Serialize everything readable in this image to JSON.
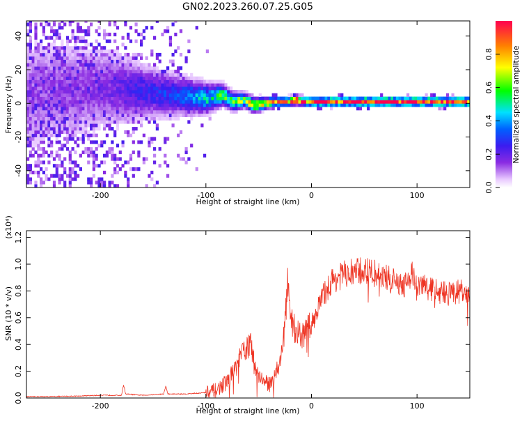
{
  "title": "GN02.2023.260.07.25.G05",
  "chart_data": [
    {
      "type": "heatmap",
      "xlabel": "Height of straight line (km)",
      "ylabel": "Frequency (Hz)",
      "xlim": [
        -270,
        150
      ],
      "ylim": [
        -50,
        49
      ],
      "xticks": [
        -200,
        -100,
        0,
        100
      ],
      "yticks": [
        -40,
        -20,
        0,
        20,
        40
      ],
      "colorbar": {
        "label": "Normalized spectral amplitude",
        "range": [
          0.0,
          1.0
        ],
        "ticks": [
          0.0,
          0.2,
          0.4,
          0.6,
          0.8
        ]
      },
      "ridge": {
        "x": [
          -270,
          -200,
          -160,
          -130,
          -100,
          -85,
          -75,
          -65,
          -55,
          -45,
          -35,
          -25,
          -15,
          -5,
          0,
          50,
          100,
          150
        ],
        "y": [
          5,
          8,
          6,
          4,
          2,
          4,
          0,
          1,
          -2,
          -1,
          0,
          0,
          1,
          0,
          0,
          0,
          0,
          0
        ],
        "width": [
          40,
          30,
          18,
          14,
          10,
          7,
          6,
          5,
          5,
          4,
          3,
          3,
          3,
          3,
          3,
          3,
          3,
          3
        ],
        "peak": [
          0.12,
          0.15,
          0.25,
          0.3,
          0.45,
          0.55,
          0.6,
          0.65,
          0.7,
          0.75,
          0.8,
          0.85,
          0.95,
          0.9,
          0.95,
          1.0,
          1.0,
          0.95
        ]
      }
    },
    {
      "type": "line",
      "xlabel": "Height of straight line (km)",
      "ylabel": "SNR (10 * v/v)",
      "y_scale_note": "(x10⁴)",
      "xlim": [
        -270,
        150
      ],
      "ylim": [
        0,
        1.25
      ],
      "xticks": [
        -200,
        -100,
        0,
        100
      ],
      "yticks": [
        0.0,
        0.2,
        0.4,
        0.6,
        0.8,
        1.0,
        1.2
      ],
      "series": [
        {
          "color": "#ee3322",
          "x": [
            -270,
            -250,
            -220,
            -200,
            -180,
            -178,
            -176,
            -160,
            -140,
            -138,
            -136,
            -120,
            -100,
            -90,
            -80,
            -70,
            -65,
            -60,
            -58,
            -55,
            -50,
            -45,
            -40,
            -35,
            -30,
            -25,
            -22,
            -20,
            -15,
            -10,
            0,
            10,
            20,
            30,
            40,
            50,
            60,
            70,
            80,
            90,
            95,
            100,
            105,
            110,
            120,
            130,
            140,
            150
          ],
          "y": [
            0.01,
            0.01,
            0.015,
            0.02,
            0.02,
            0.1,
            0.03,
            0.02,
            0.03,
            0.09,
            0.03,
            0.03,
            0.04,
            0.06,
            0.12,
            0.25,
            0.35,
            0.38,
            0.42,
            0.28,
            0.18,
            0.12,
            0.1,
            0.18,
            0.25,
            0.55,
            0.9,
            0.62,
            0.5,
            0.45,
            0.55,
            0.75,
            0.88,
            0.92,
            0.94,
            0.95,
            0.93,
            0.9,
            0.86,
            0.85,
            0.95,
            0.8,
            0.85,
            0.82,
            0.8,
            0.78,
            0.8,
            0.75
          ]
        }
      ]
    }
  ]
}
